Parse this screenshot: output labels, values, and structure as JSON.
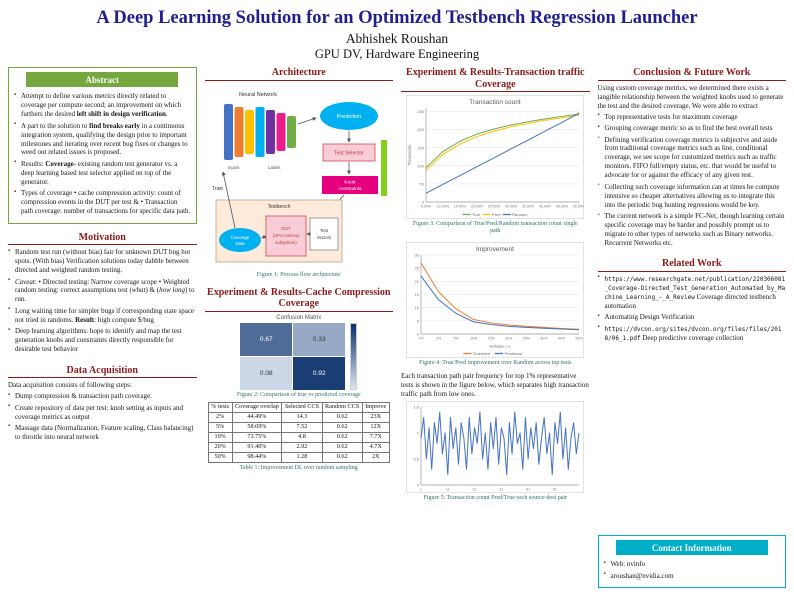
{
  "colors": {
    "title_navy": "#1f1f8f",
    "section_maroon": "#8b1a1a",
    "abstract_green": "#76a73f",
    "contact_cyan": "#00aec8"
  },
  "header": {
    "title": "A Deep Learning Solution for an Optimized Testbench Regression Launcher",
    "author": "Abhishek Roushan",
    "affiliation": "GPU DV, Hardware Engineering"
  },
  "abstract": {
    "title": "Abstract",
    "bullets": [
      [
        {
          "t": "Attempt to define various metrics directly related to coverage per compute second; an improvement on which furthers the desired "
        },
        {
          "t": "left shift in design verification",
          "b": true
        },
        {
          "t": "."
        }
      ],
      [
        {
          "t": "A part to the solution to "
        },
        {
          "t": "find breaks early",
          "b": true
        },
        {
          "t": " in a continuous integration system, qualifying the design prior to important milestones and iterating over recent bug fixes or changes to weed out related issues is proposed."
        }
      ],
      [
        {
          "t": "Results: "
        },
        {
          "t": "Coverage",
          "b": true
        },
        {
          "t": "- existing random test generator vs. a deep learning based test selector applied on top of the generator."
        }
      ],
      [
        {
          "t": "Types of coverage • cache compression activity: count of compression events in the DUT per test & • Transaction path coverage: number of transactions for specific data path."
        }
      ]
    ]
  },
  "motivation": {
    "title": "Motivation",
    "bullets": [
      [
        {
          "t": "Random test run (without bias) fair for unknown DUT bug hot spots. (With bias) Verification solutions today dabble between directed and weighted random testing."
        }
      ],
      [
        {
          "t": "Caveat",
          "i": true
        },
        {
          "t": ": • Directed testing: Narrow coverage scope • Weighted random testing: correct assumptions test ("
        },
        {
          "t": "what",
          "i": true
        },
        {
          "t": ") & ("
        },
        {
          "t": "how long",
          "i": true
        },
        {
          "t": ") to run."
        }
      ],
      [
        {
          "t": "Long waiting time for simpler bugs if corresponding state space not tried in randoms. "
        },
        {
          "t": "Result",
          "b": true
        },
        {
          "t": ": high compute $/bug"
        }
      ],
      [
        {
          "t": "Deep learning algorithms: hope to identify and map the test generation knobs and constraints directly responsible for desirable test behavior"
        }
      ]
    ]
  },
  "data_acquisition": {
    "title": "Data Acquisition",
    "intro": "Data acquisition consists of following steps:",
    "bullets": [
      "Dump compression & transaction path coverage.",
      "Create repository of data per test: knob setting as inputs and coverage metrics as output",
      "Massage data (Normalization, Feature scaling, Class balancing) to throttle into neural network"
    ]
  },
  "architecture": {
    "title": "Architecture",
    "caption": "Figure 1: Process flow architecture",
    "labels": {
      "neural_network": "Neural Network",
      "inputs": "Inputs",
      "labels_text": "Labels",
      "prediction": "Prediction",
      "train": "Train",
      "test_selector": "Test Selector",
      "knob1": "Knob",
      "knob2": "constraints",
      "testbench": "Testbench",
      "cov1": "Coverage",
      "cov2": "Data",
      "dut1": "DUT",
      "dut2": "(GPU memory",
      "dut3": "subsystem)",
      "tv1": "Test",
      "tv2": "Vectors"
    }
  },
  "cache_results": {
    "title": "Experiment & Results-Cache Compression Coverage",
    "figure_caption": "Figure 2: Comparison of true vs predicted coverage",
    "table": {
      "caption": "Table 1: Improvement DL over random sampling",
      "headers": [
        "% tests",
        "Coverage overlap",
        "Selected CCS",
        "Random CCS",
        "Improve"
      ],
      "rows": [
        [
          "2%",
          "44.49%",
          "14.3",
          "0.62",
          "23X"
        ],
        [
          "5%",
          "58.09%",
          "7.52",
          "0.62",
          "12X"
        ],
        [
          "10%",
          "73.75%",
          "4.8",
          "0.62",
          "7.7X"
        ],
        [
          "20%",
          "91.40%",
          "2.92",
          "0.62",
          "4.7X"
        ],
        [
          "50%",
          "98.44%",
          "1.28",
          "0.62",
          "2X"
        ]
      ]
    }
  },
  "transaction_results": {
    "title": "Experiment & Results-Transaction traffic Coverage",
    "figure3_caption": "Figure 3: Comparison of True/Pred/Random transaction count single path",
    "figure4_caption": "Figure 4: True/Pred improvement over Random across top tests",
    "body_text": "Each transaction path pair frequency for top 1% representative tests is shown in the figure below, which separates high transaction traffic path from low ones.",
    "figure5_caption": "Figure 5: Transaction count Pred/True each source-dest pair"
  },
  "conclusion": {
    "title": "Conclusion & Future Work",
    "intro": "Using custom coverage metrics, we determined there exists a tangible relationship between the weighted knobs used to generate the test and the desired coverage. We were able to extract",
    "bullets": [
      "Top representative tests for maximum coverage",
      "Grouping coverage metric so as to find the best overall tests"
    ],
    "future": [
      "Defining verification coverage metrics is subjective and aside from traditional coverage metrics such as line, conditional coverage, we see scope for customized metrics such as traffic monitors. FIFO full/empty status, etc. that would be useful to advocate for or against the efficacy of any given test.",
      "Collecting such coverage information can at times be compute intensive so cheaper alternatives allowing us to integrate this into the periodic bug hunting regressions would be key.",
      "The current network is a simple FC-Net, though learning certain specific coverage may be harder and possibly prompt us to migrate to other types of networks such as Binary networks. Recurrent Networks etc."
    ]
  },
  "related_work": {
    "title": "Related Work",
    "items": [
      {
        "url": "https://www.researchgate.net/publication/220306081_Coverage-Directed_Test_Generation_Automated_by_Machine_Learning_-_A_Review",
        "text": "Coverage directed testbench automation"
      },
      {
        "url": "",
        "text": "Automating Design Verification"
      },
      {
        "url": "https://dvcon.org/sites/dvcon.org/files/files/2018/06_1.pdf",
        "text": "Deep predictive coverage collection"
      }
    ]
  },
  "contact": {
    "title": "Contact Information",
    "items": [
      "Web: nvinfo",
      "aroushan@nvidia.com"
    ]
  },
  "chart_data": [
    {
      "id": "fig2",
      "type": "heatmap",
      "title": "Confusion Matrix",
      "values": [
        [
          0.67,
          0.33
        ],
        [
          0.08,
          0.92
        ]
      ],
      "low_color": "#dce6f2",
      "high_color": "#0a2e6b"
    },
    {
      "id": "fig3",
      "type": "line",
      "title": "Transaction count",
      "ylabel": "Thousands",
      "x": [
        "5.00%",
        "10.00%",
        "15.00%",
        "20.00%",
        "25.00%",
        "30.00%",
        "35.00%",
        "40.00%",
        "45.00%",
        "50.00%"
      ],
      "ylim": [
        0,
        260
      ],
      "yticks": [
        0,
        50,
        100,
        150,
        200,
        250
      ],
      "series": [
        {
          "name": "True",
          "color": "#70ad47",
          "values": [
            95,
            140,
            168,
            188,
            202,
            213,
            222,
            230,
            237,
            243
          ]
        },
        {
          "name": "Pred",
          "color": "#ffc000",
          "values": [
            88,
            132,
            160,
            181,
            196,
            208,
            217,
            226,
            233,
            240
          ]
        },
        {
          "name": "Random",
          "color": "#4472c4",
          "values": [
            24,
            49,
            73,
            98,
            122,
            147,
            171,
            196,
            220,
            246
          ]
        }
      ]
    },
    {
      "id": "fig4",
      "type": "line",
      "title": "Improvement",
      "xlabel": "%Tests -->",
      "x": [
        "1%",
        "2%",
        "5%",
        "10%",
        "15%",
        "20%",
        "25%",
        "30%",
        "40%",
        "50%"
      ],
      "ylim": [
        0,
        30
      ],
      "yticks": [
        0,
        5,
        10,
        15,
        20,
        25,
        30
      ],
      "series": [
        {
          "name": "True/rand",
          "color": "#ed7d31",
          "values": [
            27,
            16,
            9.5,
            5.5,
            4.2,
            3.4,
            2.9,
            2.5,
            2.1,
            1.8
          ]
        },
        {
          "name": "Pred/rand",
          "color": "#4472c4",
          "values": [
            22,
            13,
            7.8,
            4.6,
            3.6,
            2.9,
            2.5,
            2.2,
            1.9,
            1.6
          ]
        }
      ]
    },
    {
      "id": "fig5",
      "type": "line",
      "ylim": [
        0,
        1.5
      ],
      "yticks": [
        0,
        0.5,
        1,
        1.5
      ],
      "legend": false,
      "series": [
        {
          "name": "Pred/True",
          "color": "#4472c4",
          "values": [
            0.9,
            1.3,
            0.5,
            1.1,
            0.3,
            1.2,
            0.8,
            1.4,
            0.6,
            1.0,
            0.2,
            1.3,
            0.7,
            1.1,
            0.4,
            1.2,
            0.9,
            0.3,
            1.3,
            0.6,
            1.1,
            0.8,
            1.4,
            0.5,
            1.0,
            0.3,
            1.2,
            0.7,
            1.3,
            0.4,
            1.1,
            0.9,
            0.2,
            1.2,
            0.6,
            1.4,
            0.8,
            1.0,
            0.3,
            1.3,
            0.5,
            1.1,
            0.7,
            1.2,
            0.4,
            0.9,
            1.3,
            0.6,
            1.0,
            0.2,
            1.2,
            0.8,
            1.4,
            0.5,
            1.1,
            0.3,
            0.9,
            1.2,
            0.6,
            1.0
          ]
        }
      ]
    }
  ]
}
